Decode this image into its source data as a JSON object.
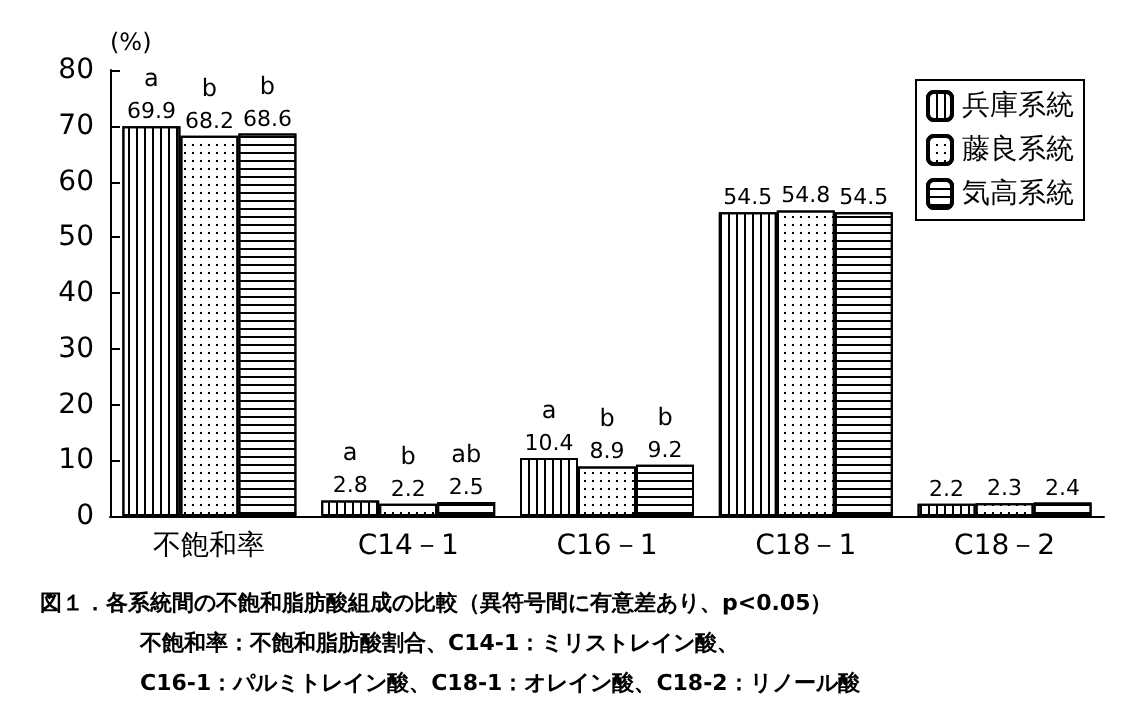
{
  "chart_data": {
    "type": "bar",
    "ylabel": "(%)",
    "categories": [
      "不飽和率",
      "C14－1",
      "C16－1",
      "C18－1",
      "C18－2"
    ],
    "series": [
      {
        "name": "兵庫系統",
        "color": "#ffffff",
        "values": [
          69.9,
          2.8,
          10.4,
          54.5,
          2.2
        ]
      },
      {
        "name": "藤良系統",
        "color": "#ffffff",
        "values": [
          68.2,
          2.2,
          8.9,
          54.8,
          2.3
        ]
      },
      {
        "name": "気高系統",
        "color": "#ffffff",
        "values": [
          68.6,
          2.5,
          9.2,
          54.5,
          2.4
        ]
      }
    ],
    "ylim": [
      0,
      80
    ],
    "yticks": [
      0,
      10,
      20,
      30,
      40,
      50,
      60,
      70,
      80
    ],
    "data_labels": true,
    "legend": "top right",
    "grid": false,
    "annotations": [
      {
        "text": "a",
        "x": "不飽和率",
        "y": 69.9
      },
      {
        "text": "b",
        "x": "不飽和率",
        "y": 68.2
      },
      {
        "text": "b",
        "x": "不飽和率",
        "y": 68.6
      },
      {
        "text": "a",
        "x": "C14－1",
        "y": 2.8
      },
      {
        "text": "b",
        "x": "C14－1",
        "y": 2.2
      },
      {
        "text": "ab",
        "x": "C14－1",
        "y": 2.5
      },
      {
        "text": "a",
        "x": "C16－1",
        "y": 10.4
      },
      {
        "text": "b",
        "x": "C16－1",
        "y": 8.9
      },
      {
        "text": "b",
        "x": "C16－1",
        "y": 9.2
      },
      "図１．各系統間の不飽和脂肪酸組成の比較（異符号間に有意差あり、p<0.05）",
      "不飽和率：不飽和脂肪酸割合、C14-1：ミリストレイン酸、",
      "C16-1：パルミトレイン酸、C18-1：オレイン酸、C18-2：リノール酸"
    ]
  }
}
